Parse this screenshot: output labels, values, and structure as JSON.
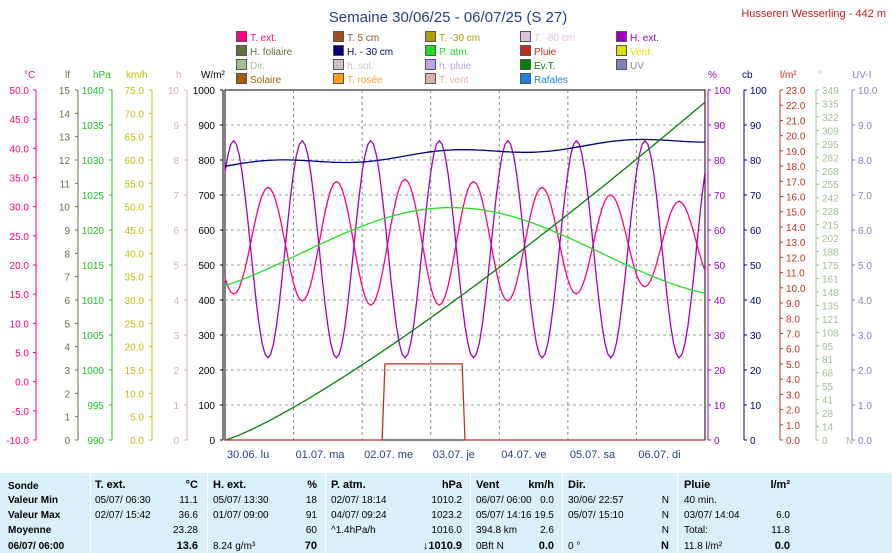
{
  "header": {
    "title": "Semaine 30/06/25 - 06/07/25 (S 27)",
    "station": "Husseren Wesserling - 442 m"
  },
  "legend": [
    {
      "label": "T. ext.",
      "color": "#ff0080"
    },
    {
      "label": "T. 5 cm",
      "color": "#a05020"
    },
    {
      "label": "T. -30 cm",
      "color": "#b0a000"
    },
    {
      "label": "T. -80 cm",
      "color": "#e0c0e0"
    },
    {
      "label": "H. ext.",
      "color": "#a000c0"
    },
    {
      "label": "H. foliaire",
      "color": "#607040"
    },
    {
      "label": "H. - 30 cm",
      "color": "#000080"
    },
    {
      "label": "P. atm.",
      "color": "#20e020"
    },
    {
      "label": "Pluie",
      "color": "#c03020"
    },
    {
      "label": "Vent",
      "color": "#e0e000"
    },
    {
      "label": "Dir.",
      "color": "#a0c090"
    },
    {
      "label": "h. sol.",
      "color": "#d0c0c0"
    },
    {
      "label": "h. pluie",
      "color": "#c0a0f0"
    },
    {
      "label": "Ev.T.",
      "color": "#008000"
    },
    {
      "label": "UV",
      "color": "#8080c0"
    },
    {
      "label": "Solaire",
      "color": "#a06000"
    },
    {
      "label": "T. rosée",
      "color": "#ffa020"
    },
    {
      "label": "T. vent",
      "color": "#e0b0a0"
    },
    {
      "label": "Rafales",
      "color": "#2080e0"
    }
  ],
  "chart_data": {
    "type": "line",
    "x_labels": [
      "30.06. lu",
      "01.07. ma",
      "02.07. me",
      "03.07. je",
      "04.07. ve",
      "05.07. sa",
      "06.07. di"
    ],
    "axes": {
      "temp": {
        "unit": "°C",
        "color": "#ff0080",
        "ticks": [
          "50.0",
          "45.0",
          "40.0",
          "35.0",
          "30.0",
          "25.0",
          "20.0",
          "15.0",
          "10.0",
          "5.0",
          "0.0",
          "-5.0",
          "-10.0"
        ]
      },
      "leaf": {
        "unit": "lf",
        "color": "#607040",
        "ticks": [
          "15",
          "14",
          "13",
          "12",
          "11",
          "10",
          "9",
          "8",
          "7",
          "6",
          "5",
          "4",
          "3",
          "2",
          "1",
          "0"
        ]
      },
      "press": {
        "unit": "hPa",
        "color": "#20c020",
        "ticks": [
          "1040",
          "1035",
          "1030",
          "1025",
          "1020",
          "1015",
          "1010",
          "1005",
          "1000",
          "995",
          "990"
        ]
      },
      "wind": {
        "unit": "km/h",
        "color": "#c0c000",
        "ticks": [
          "75.0",
          "70.0",
          "65.0",
          "60.0",
          "55.0",
          "50.0",
          "45.0",
          "40.0",
          "35.0",
          "30.0",
          "25.0",
          "20.0",
          "15.0",
          "10.0",
          "5.0",
          "0.0"
        ]
      },
      "hours": {
        "unit": "h",
        "color": "#d0b0b0",
        "ticks": [
          "10",
          "9",
          "8",
          "7",
          "6",
          "5",
          "4",
          "3",
          "2",
          "1",
          "0"
        ]
      },
      "solar": {
        "unit": "W/m²",
        "color": "#000000",
        "ticks": [
          "1000",
          "900",
          "800",
          "700",
          "600",
          "500",
          "400",
          "300",
          "200",
          "100",
          "0"
        ]
      },
      "hum": {
        "unit": "%",
        "color": "#a000c0",
        "ticks": [
          "100",
          "90",
          "80",
          "70",
          "60",
          "50",
          "40",
          "30",
          "20",
          "10",
          "0"
        ]
      },
      "cb": {
        "unit": "cb",
        "color": "#000080",
        "ticks": [
          "100",
          "90",
          "80",
          "70",
          "60",
          "50",
          "40",
          "30",
          "20",
          "10",
          "0"
        ]
      },
      "rain": {
        "unit": "l/m²",
        "color": "#c03020",
        "ticks": [
          "23.0",
          "22.0",
          "21.0",
          "20.0",
          "19.0",
          "18.0",
          "17.0",
          "16.0",
          "15.0",
          "14.0",
          "13.0",
          "12.0",
          "11.0",
          "10.0",
          "9.0",
          "8.0",
          "7.0",
          "6.0",
          "5.0",
          "4.0",
          "3.0",
          "2.0",
          "1.0",
          "0.0"
        ]
      },
      "dir": {
        "unit": "°",
        "color": "#a0c090",
        "ticks": [
          "349",
          "335",
          "322",
          "309",
          "295",
          "282",
          "268",
          "255",
          "242",
          "228",
          "215",
          "202",
          "188",
          "175",
          "161",
          "148",
          "135",
          "121",
          "108",
          "95",
          "81",
          "68",
          "55",
          "41",
          "28",
          "14",
          "0"
        ],
        "extra_labels": [
          "N"
        ]
      },
      "uv": {
        "unit": "UV-I",
        "color": "#8080c0",
        "ticks": [
          "10.0",
          "9.0",
          "8.0",
          "7.0",
          "6.0",
          "5.0",
          "4.0",
          "3.0",
          "2.0",
          "1.0",
          "0.0"
        ]
      }
    },
    "series": [
      {
        "name": "T. ext.",
        "axis": "temp",
        "min": 11.1,
        "max": 36.6,
        "color": "#ff0080"
      },
      {
        "name": "H. ext.",
        "axis": "hum",
        "min": 18,
        "max": 91,
        "color": "#a000c0"
      },
      {
        "name": "P. atm.",
        "axis": "press",
        "min": 1010.2,
        "max": 1023.2,
        "color": "#20e020"
      },
      {
        "name": "H. - 30 cm",
        "axis": "cb",
        "min": 73,
        "max": 86,
        "color": "#000080"
      },
      {
        "name": "Ev.T.",
        "axis": "rain",
        "min": 0,
        "max": 22.2,
        "color": "#008000"
      },
      {
        "name": "Pluie",
        "axis": "rain",
        "total": 11.8,
        "color": "#c03020"
      }
    ]
  },
  "stats": {
    "row_labels": [
      "Sonde",
      "Valeur Min",
      "Valeur Max",
      "Moyenne",
      "06/07/ 06:00"
    ],
    "text": {
      "header": {
        "name": "T. ext.",
        "unit": "°C"
      },
      "min": [
        "05/07/ 06:30",
        "11.1"
      ],
      "max": [
        "02/07/ 15:42",
        "36.6"
      ],
      "avg": "23.28",
      "cur": "13.6"
    },
    "hext": {
      "header": {
        "name": "H. ext.",
        "unit": "%"
      },
      "min": [
        "05/07/ 13:30",
        "18"
      ],
      "max": [
        "01/07/ 09:00",
        "91"
      ],
      "avg": "60",
      "cur": [
        "8.24 g/m³",
        "70"
      ]
    },
    "patm": {
      "header": {
        "name": "P. atm.",
        "unit": "hPa"
      },
      "min": [
        "02/07/ 18:14",
        "1010.2"
      ],
      "max": [
        "04/07/ 09:24",
        "1023.2"
      ],
      "avg": [
        "^1.4hPa/h",
        "1016.0"
      ],
      "cur": "↓1010.9"
    },
    "vent": {
      "header": {
        "name": "Vent",
        "unit": "km/h"
      },
      "min": [
        "06/07/ 06:00",
        "0.0"
      ],
      "max": [
        "05/07/ 14:16",
        "19.5"
      ],
      "avg": [
        "394.8 km",
        "2.6"
      ],
      "cur": [
        "0Bft N",
        "0.0"
      ]
    },
    "dir": {
      "header": {
        "name": "Dir."
      },
      "min": [
        "30/06/ 22:57",
        "N"
      ],
      "max": [
        "05/07/ 15:10",
        "N"
      ],
      "avg": "N",
      "cur": [
        "0 °",
        "N"
      ]
    },
    "pluie": {
      "header": {
        "name": "Pluie",
        "unit": "l/m²"
      },
      "min": "40 min.",
      "max": [
        "03/07/ 14:04",
        "6.0"
      ],
      "total": [
        "Total:",
        "11.8"
      ],
      "cur": [
        "11.8 l/m²",
        "0.0"
      ]
    }
  }
}
